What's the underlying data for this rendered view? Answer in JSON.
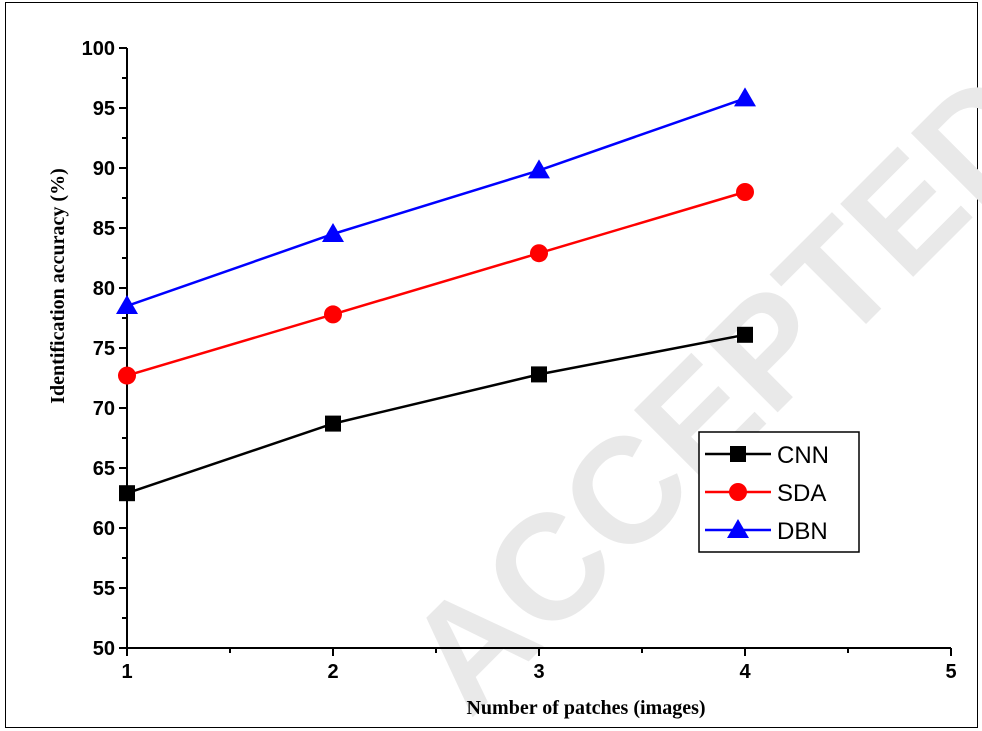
{
  "watermark": "ACCEPTED MANUSCRIPT",
  "chart_data": {
    "type": "line",
    "xlabel": "Number of patches (images)",
    "ylabel": "Identification accuracy (%)",
    "x": [
      1,
      2,
      3,
      4
    ],
    "xlim": [
      1,
      5
    ],
    "ylim": [
      50,
      100
    ],
    "xticks": [
      1,
      2,
      3,
      4,
      5
    ],
    "yticks": [
      50,
      55,
      60,
      65,
      70,
      75,
      80,
      85,
      90,
      95,
      100
    ],
    "legend_position": "center-right",
    "grid": false,
    "series": [
      {
        "name": "CNN",
        "values": [
          62.9,
          68.7,
          72.8,
          76.1
        ],
        "color": "#000000",
        "marker": "square"
      },
      {
        "name": "SDA",
        "values": [
          72.7,
          77.8,
          82.9,
          88.0
        ],
        "color": "#ff0000",
        "marker": "circle"
      },
      {
        "name": "DBN",
        "values": [
          78.5,
          84.5,
          89.8,
          95.8
        ],
        "color": "#0000ff",
        "marker": "triangle"
      }
    ]
  }
}
